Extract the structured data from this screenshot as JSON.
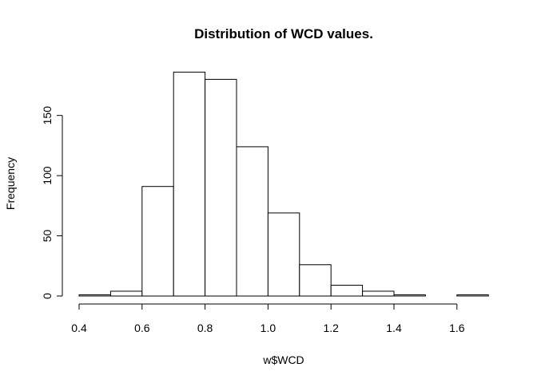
{
  "chart_data": {
    "type": "bar",
    "title": "Distribution of WCD values.",
    "xlabel": "w$WCD",
    "ylabel": "Frequency",
    "xlim": [
      0.4,
      1.7
    ],
    "ylim": [
      0,
      190
    ],
    "x_ticks": [
      "0.4",
      "0.6",
      "0.8",
      "1.0",
      "1.2",
      "1.4",
      "1.6"
    ],
    "y_ticks": [
      "0",
      "50",
      "100",
      "150"
    ],
    "bins": [
      {
        "start": 0.4,
        "end": 0.5,
        "count": 1
      },
      {
        "start": 0.5,
        "end": 0.6,
        "count": 4
      },
      {
        "start": 0.6,
        "end": 0.7,
        "count": 91
      },
      {
        "start": 0.7,
        "end": 0.8,
        "count": 186
      },
      {
        "start": 0.8,
        "end": 0.9,
        "count": 180
      },
      {
        "start": 0.9,
        "end": 1.0,
        "count": 124
      },
      {
        "start": 1.0,
        "end": 1.1,
        "count": 69
      },
      {
        "start": 1.1,
        "end": 1.2,
        "count": 26
      },
      {
        "start": 1.2,
        "end": 1.3,
        "count": 9
      },
      {
        "start": 1.3,
        "end": 1.4,
        "count": 4
      },
      {
        "start": 1.4,
        "end": 1.5,
        "count": 1
      },
      {
        "start": 1.5,
        "end": 1.6,
        "count": 0
      },
      {
        "start": 1.6,
        "end": 1.7,
        "count": 1
      }
    ],
    "grid": false,
    "legend": "none"
  }
}
